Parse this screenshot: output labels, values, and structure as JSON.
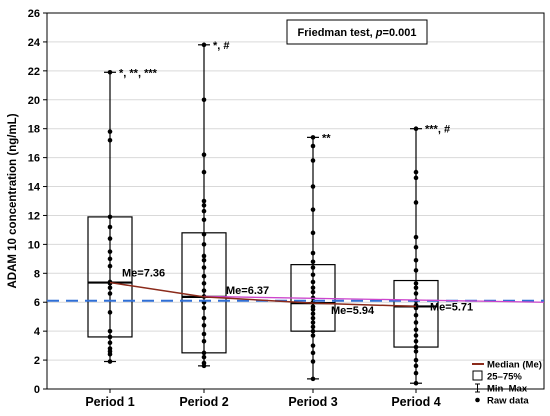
{
  "chart_data": {
    "type": "box",
    "ylabel": "ADAM 10 concentration (ng/mL)",
    "ylim": [
      0,
      26
    ],
    "yticks": [
      0,
      2,
      4,
      6,
      8,
      10,
      12,
      14,
      16,
      18,
      20,
      22,
      24,
      26
    ],
    "grid": true,
    "test_annotation": {
      "prefix": "Friedman test, ",
      "p_symbol": "p",
      "suffix": "=0.001"
    },
    "reference_line": {
      "value": 6.1,
      "style": "dashed",
      "color": "#2f6fd6"
    },
    "colors": {
      "median_line": "#8b2a1a",
      "purple_line": "#cc44cc",
      "box": "#000000",
      "points": "#000000"
    },
    "categories": [
      "Period 1",
      "Period 2",
      "Period 3",
      "Period 4"
    ],
    "boxes": [
      {
        "name": "Period 1",
        "min": 1.9,
        "q1": 3.6,
        "median": 7.36,
        "q3": 11.9,
        "max": 21.9,
        "median_label": "Me=7.36",
        "annotation": "*, **, ***",
        "points": [
          1.9,
          2.4,
          2.6,
          2.8,
          3.2,
          3.6,
          4.0,
          5.3,
          6.6,
          7.0,
          7.3,
          7.4,
          8.5,
          9.0,
          9.5,
          10.4,
          11.2,
          11.9,
          17.2,
          17.8,
          21.9
        ]
      },
      {
        "name": "Period 2",
        "min": 1.6,
        "q1": 2.5,
        "median": 6.37,
        "q3": 10.8,
        "max": 23.8,
        "median_label": "Me=6.37",
        "annotation": "*, #",
        "points": [
          1.6,
          1.8,
          2.2,
          2.5,
          3.3,
          3.8,
          4.4,
          4.9,
          5.6,
          6.0,
          6.4,
          6.8,
          7.3,
          7.8,
          8.4,
          8.9,
          9.2,
          10.0,
          10.7,
          11.7,
          12.3,
          12.7,
          13.0,
          15.0,
          16.2,
          20.0,
          23.8
        ]
      },
      {
        "name": "Period 3",
        "min": 0.7,
        "q1": 4.0,
        "median": 5.94,
        "q3": 8.6,
        "max": 17.4,
        "median_label": "Me=5.94",
        "annotation": "**",
        "points": [
          0.7,
          1.9,
          2.5,
          3.0,
          3.7,
          4.0,
          4.3,
          4.6,
          4.9,
          5.2,
          5.5,
          5.7,
          6.0,
          6.3,
          6.7,
          7.0,
          7.4,
          7.9,
          8.4,
          8.8,
          9.4,
          10.8,
          12.4,
          14.0,
          15.8,
          16.8,
          17.4
        ]
      },
      {
        "name": "Period 4",
        "min": 0.4,
        "q1": 2.9,
        "median": 5.71,
        "q3": 7.5,
        "max": 18.0,
        "median_label": "Me=5.71",
        "annotation": "***, #",
        "points": [
          0.4,
          1.1,
          1.6,
          2.0,
          2.6,
          2.9,
          3.3,
          3.7,
          4.1,
          4.6,
          5.1,
          5.6,
          5.8,
          6.1,
          6.6,
          7.0,
          7.3,
          8.2,
          8.9,
          9.8,
          10.5,
          12.9,
          14.6,
          15.0,
          18.0
        ]
      }
    ],
    "legend": [
      {
        "label": "Median (Me)",
        "symbol": "line"
      },
      {
        "label": "25–75%",
        "symbol": "box"
      },
      {
        "label": "Min–Max",
        "symbol": "whisker"
      },
      {
        "label": "Raw data",
        "symbol": "dot"
      }
    ]
  }
}
